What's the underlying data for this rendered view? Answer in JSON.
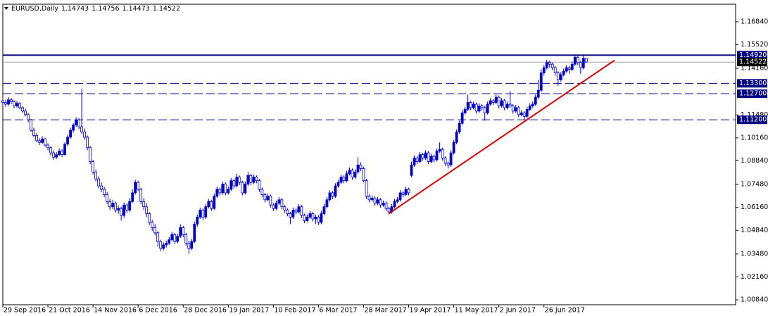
{
  "chart_data": {
    "type": "candlestick",
    "symbol": "EURUSD,Daily",
    "color": "#0000cc",
    "xlim": [
      -1,
      260
    ],
    "ylim": [
      1.0056,
      1.1785
    ],
    "yticks": [
      {
        "value": 1.1684,
        "label": "1.16840"
      },
      {
        "value": 1.1552,
        "label": "1.15520"
      },
      {
        "value": 1.1416,
        "label": "1.14160"
      },
      {
        "value": 1.1148,
        "label": "1.11480"
      },
      {
        "value": 1.1016,
        "label": "1.10160"
      },
      {
        "value": 1.0884,
        "label": "1.08840"
      },
      {
        "value": 1.0748,
        "label": "1.07480"
      },
      {
        "value": 1.0616,
        "label": "1.06160"
      },
      {
        "value": 1.0484,
        "label": "1.04840"
      },
      {
        "value": 1.0348,
        "label": "1.03480"
      },
      {
        "value": 1.0216,
        "label": "1.02160"
      },
      {
        "value": 1.0084,
        "label": "1.00840"
      }
    ],
    "xticks": [
      {
        "value": 0,
        "label": "29 Sep 2016"
      },
      {
        "value": 16,
        "label": "21 Oct 2016"
      },
      {
        "value": 32,
        "label": "14 Nov 2016"
      },
      {
        "value": 48,
        "label": "6 Dec 2016"
      },
      {
        "value": 64,
        "label": "28 Dec 2016"
      },
      {
        "value": 80,
        "label": "19 Jan 2017"
      },
      {
        "value": 96,
        "label": "10 Feb 2017"
      },
      {
        "value": 112,
        "label": "6 Mar 2017"
      },
      {
        "value": 128,
        "label": "28 Mar 2017"
      },
      {
        "value": 144,
        "label": "19 Apr 2017"
      },
      {
        "value": 160,
        "label": "11 May 2017"
      },
      {
        "value": 176,
        "label": "2 Jun 2017"
      },
      {
        "value": 192,
        "label": "26 Jun 2017"
      }
    ],
    "levels": [
      {
        "value": 1.1492,
        "label": "1.14920",
        "style": "solid",
        "color": "#000080"
      },
      {
        "value": 1.133,
        "label": "1.13300",
        "style": "dashed",
        "color": "#000080"
      },
      {
        "value": 1.127,
        "label": "1.12700",
        "style": "dashed",
        "color": "#000080"
      },
      {
        "value": 1.112,
        "label": "1.11200",
        "style": "dashed",
        "color": "#000080"
      }
    ],
    "price_line_color": "#a0a0a0",
    "trendline": {
      "color": "#e00000",
      "points": [
        [
          137,
          1.0581
        ],
        [
          217,
          1.1462
        ]
      ]
    },
    "ohlc": [
      [
        1.123,
        1.125,
        1.1205,
        1.122
      ],
      [
        1.122,
        1.1235,
        1.1195,
        1.121
      ],
      [
        1.121,
        1.125,
        1.12,
        1.1235
      ],
      [
        1.1235,
        1.1245,
        1.121,
        1.1225
      ],
      [
        1.1225,
        1.1232,
        1.1185,
        1.12
      ],
      [
        1.12,
        1.1228,
        1.119,
        1.1215
      ],
      [
        1.1215,
        1.1222,
        1.118,
        1.119
      ],
      [
        1.119,
        1.12,
        1.116,
        1.117
      ],
      [
        1.117,
        1.1185,
        1.114,
        1.115
      ],
      [
        1.115,
        1.116,
        1.1105,
        1.112
      ],
      [
        1.112,
        1.1125,
        1.105,
        1.106
      ],
      [
        1.106,
        1.1075,
        1.102,
        1.103
      ],
      [
        1.103,
        1.1045,
        1.099,
        1.1
      ],
      [
        1.1,
        1.1015,
        1.0975,
        1.099
      ],
      [
        1.099,
        1.1025,
        1.098,
        1.101
      ],
      [
        1.101,
        1.1015,
        1.0965,
        1.0975
      ],
      [
        1.0975,
        1.0985,
        1.0945,
        1.096
      ],
      [
        1.096,
        1.097,
        1.0915,
        1.093
      ],
      [
        1.093,
        1.0945,
        1.089,
        1.0905
      ],
      [
        1.0905,
        1.0935,
        1.0895,
        1.092
      ],
      [
        1.092,
        1.0955,
        1.091,
        1.094
      ],
      [
        1.094,
        1.095,
        1.0905,
        1.092
      ],
      [
        1.092,
        1.099,
        1.0915,
        1.098
      ],
      [
        1.098,
        1.1035,
        1.097,
        1.102
      ],
      [
        1.102,
        1.1075,
        1.101,
        1.106
      ],
      [
        1.106,
        1.11,
        1.1045,
        1.109
      ],
      [
        1.109,
        1.1135,
        1.108,
        1.112
      ],
      [
        1.112,
        1.113,
        1.1065,
        1.108
      ],
      [
        1.108,
        1.13,
        1.104,
        1.105
      ],
      [
        1.105,
        1.107,
        1.1005,
        1.102
      ],
      [
        1.102,
        1.103,
        1.0945,
        1.096
      ],
      [
        1.096,
        1.097,
        1.0865,
        1.088
      ],
      [
        1.088,
        1.089,
        1.0805,
        1.082
      ],
      [
        1.082,
        1.0835,
        1.0765,
        1.078
      ],
      [
        1.078,
        1.0795,
        1.0725,
        1.074
      ],
      [
        1.074,
        1.076,
        1.0705,
        1.072
      ],
      [
        1.072,
        1.0735,
        1.0675,
        1.069
      ],
      [
        1.069,
        1.0705,
        1.0635,
        1.065
      ],
      [
        1.065,
        1.0665,
        1.06,
        1.062
      ],
      [
        1.062,
        1.066,
        1.0605,
        1.064
      ],
      [
        1.064,
        1.065,
        1.0585,
        1.06
      ],
      [
        1.06,
        1.0625,
        1.058,
        1.061
      ],
      [
        1.061,
        1.062,
        1.054,
        1.057
      ],
      [
        1.057,
        1.0645,
        1.0555,
        1.063
      ],
      [
        1.063,
        1.064,
        1.0585,
        1.06
      ],
      [
        1.06,
        1.067,
        1.059,
        1.065
      ],
      [
        1.065,
        1.072,
        1.064,
        1.07
      ],
      [
        1.07,
        1.0775,
        1.069,
        1.076
      ],
      [
        1.076,
        1.077,
        1.071,
        1.072
      ],
      [
        1.072,
        1.073,
        1.0635,
        1.065
      ],
      [
        1.065,
        1.067,
        1.06,
        1.062
      ],
      [
        1.062,
        1.064,
        1.056,
        1.058
      ],
      [
        1.058,
        1.059,
        1.0515,
        1.053
      ],
      [
        1.053,
        1.0545,
        1.048,
        1.05
      ],
      [
        1.05,
        1.052,
        1.0455,
        1.047
      ],
      [
        1.047,
        1.048,
        1.039,
        1.042
      ],
      [
        1.042,
        1.043,
        1.0365,
        1.038
      ],
      [
        1.038,
        1.0415,
        1.037,
        1.04
      ],
      [
        1.04,
        1.0425,
        1.0385,
        1.041
      ],
      [
        1.041,
        1.0445,
        1.04,
        1.043
      ],
      [
        1.043,
        1.0475,
        1.042,
        1.046
      ],
      [
        1.046,
        1.047,
        1.0405,
        1.042
      ],
      [
        1.042,
        1.0465,
        1.041,
        1.045
      ],
      [
        1.045,
        1.052,
        1.044,
        1.05
      ],
      [
        1.05,
        1.051,
        1.0445,
        1.046
      ],
      [
        1.046,
        1.047,
        1.0395,
        1.041
      ],
      [
        1.041,
        1.0425,
        1.035,
        1.038
      ],
      [
        1.038,
        1.0435,
        1.037,
        1.042
      ],
      [
        1.042,
        1.0535,
        1.041,
        1.052
      ],
      [
        1.052,
        1.0575,
        1.0505,
        1.056
      ],
      [
        1.056,
        1.0615,
        1.055,
        1.06
      ],
      [
        1.06,
        1.061,
        1.0545,
        1.056
      ],
      [
        1.056,
        1.0635,
        1.055,
        1.062
      ],
      [
        1.062,
        1.0665,
        1.061,
        1.065
      ],
      [
        1.065,
        1.066,
        1.0595,
        1.061
      ],
      [
        1.061,
        1.0695,
        1.06,
        1.068
      ],
      [
        1.068,
        1.0735,
        1.067,
        1.072
      ],
      [
        1.072,
        1.073,
        1.0685,
        1.07
      ],
      [
        1.07,
        1.0765,
        1.069,
        1.075
      ],
      [
        1.075,
        1.076,
        1.0685,
        1.07
      ],
      [
        1.07,
        1.0735,
        1.069,
        1.072
      ],
      [
        1.072,
        1.0785,
        1.071,
        1.077
      ],
      [
        1.077,
        1.078,
        1.0725,
        1.074
      ],
      [
        1.074,
        1.081,
        1.073,
        1.079
      ],
      [
        1.079,
        1.08,
        1.0745,
        1.076
      ],
      [
        1.076,
        1.077,
        1.0685,
        1.07
      ],
      [
        1.07,
        1.0765,
        1.069,
        1.075
      ],
      [
        1.075,
        1.082,
        1.074,
        1.08
      ],
      [
        1.08,
        1.081,
        1.0745,
        1.076
      ],
      [
        1.076,
        1.0805,
        1.075,
        1.079
      ],
      [
        1.079,
        1.08,
        1.0755,
        1.077
      ],
      [
        1.077,
        1.078,
        1.0705,
        1.072
      ],
      [
        1.072,
        1.073,
        1.0675,
        1.069
      ],
      [
        1.069,
        1.07,
        1.0645,
        1.066
      ],
      [
        1.066,
        1.0695,
        1.065,
        1.068
      ],
      [
        1.068,
        1.069,
        1.0615,
        1.063
      ],
      [
        1.063,
        1.064,
        1.0595,
        1.061
      ],
      [
        1.061,
        1.0655,
        1.06,
        1.064
      ],
      [
        1.064,
        1.0675,
        1.063,
        1.066
      ],
      [
        1.066,
        1.067,
        1.0605,
        1.062
      ],
      [
        1.062,
        1.063,
        1.0585,
        1.06
      ],
      [
        1.06,
        1.061,
        1.0565,
        1.058
      ],
      [
        1.058,
        1.059,
        1.052,
        1.056
      ],
      [
        1.056,
        1.0615,
        1.055,
        1.06
      ],
      [
        1.06,
        1.061,
        1.0575,
        1.059
      ],
      [
        1.059,
        1.0635,
        1.058,
        1.062
      ],
      [
        1.062,
        1.063,
        1.0555,
        1.057
      ],
      [
        1.057,
        1.058,
        1.0525,
        1.054
      ],
      [
        1.054,
        1.0575,
        1.053,
        1.056
      ],
      [
        1.056,
        1.0595,
        1.055,
        1.058
      ],
      [
        1.058,
        1.059,
        1.0535,
        1.055
      ],
      [
        1.055,
        1.0575,
        1.052,
        1.056
      ],
      [
        1.056,
        1.057,
        1.0515,
        1.053
      ],
      [
        1.053,
        1.0595,
        1.052,
        1.058
      ],
      [
        1.058,
        1.0635,
        1.057,
        1.062
      ],
      [
        1.062,
        1.0675,
        1.061,
        1.066
      ],
      [
        1.066,
        1.0715,
        1.065,
        1.07
      ],
      [
        1.07,
        1.071,
        1.0665,
        1.068
      ],
      [
        1.068,
        1.0755,
        1.067,
        1.074
      ],
      [
        1.074,
        1.0775,
        1.073,
        1.076
      ],
      [
        1.076,
        1.0805,
        1.075,
        1.079
      ],
      [
        1.079,
        1.08,
        1.0755,
        1.077
      ],
      [
        1.077,
        1.0825,
        1.076,
        1.081
      ],
      [
        1.081,
        1.0845,
        1.08,
        1.083
      ],
      [
        1.083,
        1.084,
        1.0775,
        1.079
      ],
      [
        1.079,
        1.0835,
        1.078,
        1.082
      ],
      [
        1.082,
        1.0905,
        1.081,
        1.086
      ],
      [
        1.086,
        1.0875,
        1.0825,
        1.084
      ],
      [
        1.084,
        1.085,
        1.076,
        1.077
      ],
      [
        1.077,
        1.078,
        1.0665,
        1.068
      ],
      [
        1.068,
        1.069,
        1.0645,
        1.066
      ],
      [
        1.066,
        1.0685,
        1.065,
        1.067
      ],
      [
        1.067,
        1.068,
        1.0625,
        1.064
      ],
      [
        1.064,
        1.0675,
        1.063,
        1.066
      ],
      [
        1.066,
        1.067,
        1.0615,
        1.063
      ],
      [
        1.063,
        1.0655,
        1.062,
        1.064
      ],
      [
        1.064,
        1.065,
        1.0595,
        1.061
      ],
      [
        1.061,
        1.062,
        1.0575,
        1.059
      ],
      [
        1.059,
        1.0635,
        1.058,
        1.062
      ],
      [
        1.062,
        1.0665,
        1.061,
        1.065
      ],
      [
        1.065,
        1.0675,
        1.064,
        1.066
      ],
      [
        1.066,
        1.0715,
        1.065,
        1.07
      ],
      [
        1.07,
        1.071,
        1.0675,
        1.069
      ],
      [
        1.069,
        1.0735,
        1.068,
        1.072
      ],
      [
        1.072,
        1.073,
        1.0685,
        1.07
      ],
      [
        1.08,
        1.088,
        1.079,
        1.086
      ],
      [
        1.086,
        1.0915,
        1.085,
        1.09
      ],
      [
        1.09,
        1.091,
        1.0865,
        1.088
      ],
      [
        1.088,
        1.0935,
        1.087,
        1.092
      ],
      [
        1.092,
        1.093,
        1.0885,
        1.09
      ],
      [
        1.09,
        1.0945,
        1.089,
        1.093
      ],
      [
        1.093,
        1.094,
        1.0865,
        1.088
      ],
      [
        1.088,
        1.0925,
        1.087,
        1.091
      ],
      [
        1.091,
        1.092,
        1.0875,
        1.089
      ],
      [
        1.089,
        1.0955,
        1.088,
        1.094
      ],
      [
        1.094,
        1.099,
        1.093,
        1.095
      ],
      [
        1.095,
        1.096,
        1.0885,
        1.09
      ],
      [
        1.09,
        1.091,
        1.0855,
        1.087
      ],
      [
        1.087,
        1.088,
        1.084,
        1.086
      ],
      [
        1.086,
        1.0945,
        1.085,
        1.093
      ],
      [
        1.093,
        1.1005,
        1.092,
        1.099
      ],
      [
        1.099,
        1.1065,
        1.098,
        1.105
      ],
      [
        1.105,
        1.1115,
        1.104,
        1.11
      ],
      [
        1.11,
        1.1175,
        1.109,
        1.116
      ],
      [
        1.116,
        1.1195,
        1.115,
        1.118
      ],
      [
        1.118,
        1.1265,
        1.117,
        1.122
      ],
      [
        1.122,
        1.123,
        1.1175,
        1.119
      ],
      [
        1.119,
        1.1225,
        1.118,
        1.121
      ],
      [
        1.121,
        1.122,
        1.1155,
        1.117
      ],
      [
        1.117,
        1.1215,
        1.116,
        1.12
      ],
      [
        1.12,
        1.121,
        1.1175,
        1.119
      ],
      [
        1.119,
        1.12,
        1.1115,
        1.116
      ],
      [
        1.116,
        1.1225,
        1.115,
        1.121
      ],
      [
        1.121,
        1.1245,
        1.12,
        1.123
      ],
      [
        1.123,
        1.124,
        1.1205,
        1.122
      ],
      [
        1.122,
        1.1265,
        1.121,
        1.125
      ],
      [
        1.125,
        1.126,
        1.1185,
        1.12
      ],
      [
        1.12,
        1.1245,
        1.119,
        1.123
      ],
      [
        1.123,
        1.124,
        1.1175,
        1.119
      ],
      [
        1.119,
        1.1225,
        1.118,
        1.121
      ],
      [
        1.121,
        1.1285,
        1.119,
        1.12
      ],
      [
        1.12,
        1.121,
        1.1155,
        1.117
      ],
      [
        1.117,
        1.1205,
        1.116,
        1.119
      ],
      [
        1.119,
        1.12,
        1.1135,
        1.115
      ],
      [
        1.115,
        1.1175,
        1.114,
        1.116
      ],
      [
        1.116,
        1.117,
        1.112,
        1.114
      ],
      [
        1.114,
        1.1195,
        1.113,
        1.118
      ],
      [
        1.118,
        1.1215,
        1.117,
        1.12
      ],
      [
        1.12,
        1.1225,
        1.119,
        1.121
      ],
      [
        1.121,
        1.1265,
        1.12,
        1.125
      ],
      [
        1.125,
        1.135,
        1.124,
        1.129
      ],
      [
        1.129,
        1.141,
        1.128,
        1.139
      ],
      [
        1.139,
        1.1435,
        1.1375,
        1.142
      ],
      [
        1.142,
        1.1465,
        1.141,
        1.145
      ],
      [
        1.145,
        1.146,
        1.142,
        1.144
      ],
      [
        1.144,
        1.145,
        1.1405,
        1.142
      ],
      [
        1.142,
        1.143,
        1.1375,
        1.139
      ],
      [
        1.139,
        1.14,
        1.1315,
        1.135
      ],
      [
        1.135,
        1.1395,
        1.134,
        1.138
      ],
      [
        1.138,
        1.1415,
        1.137,
        1.14
      ],
      [
        1.14,
        1.1435,
        1.139,
        1.142
      ],
      [
        1.142,
        1.143,
        1.1385,
        1.141
      ],
      [
        1.141,
        1.1455,
        1.14,
        1.144
      ],
      [
        1.144,
        1.1492,
        1.143,
        1.148
      ],
      [
        1.148,
        1.149,
        1.1435,
        1.145
      ],
      [
        1.145,
        1.146,
        1.1385,
        1.142
      ],
      [
        1.142,
        1.1488,
        1.141,
        1.1474
      ],
      [
        1.14743,
        1.14756,
        1.14473,
        1.14522
      ]
    ]
  }
}
